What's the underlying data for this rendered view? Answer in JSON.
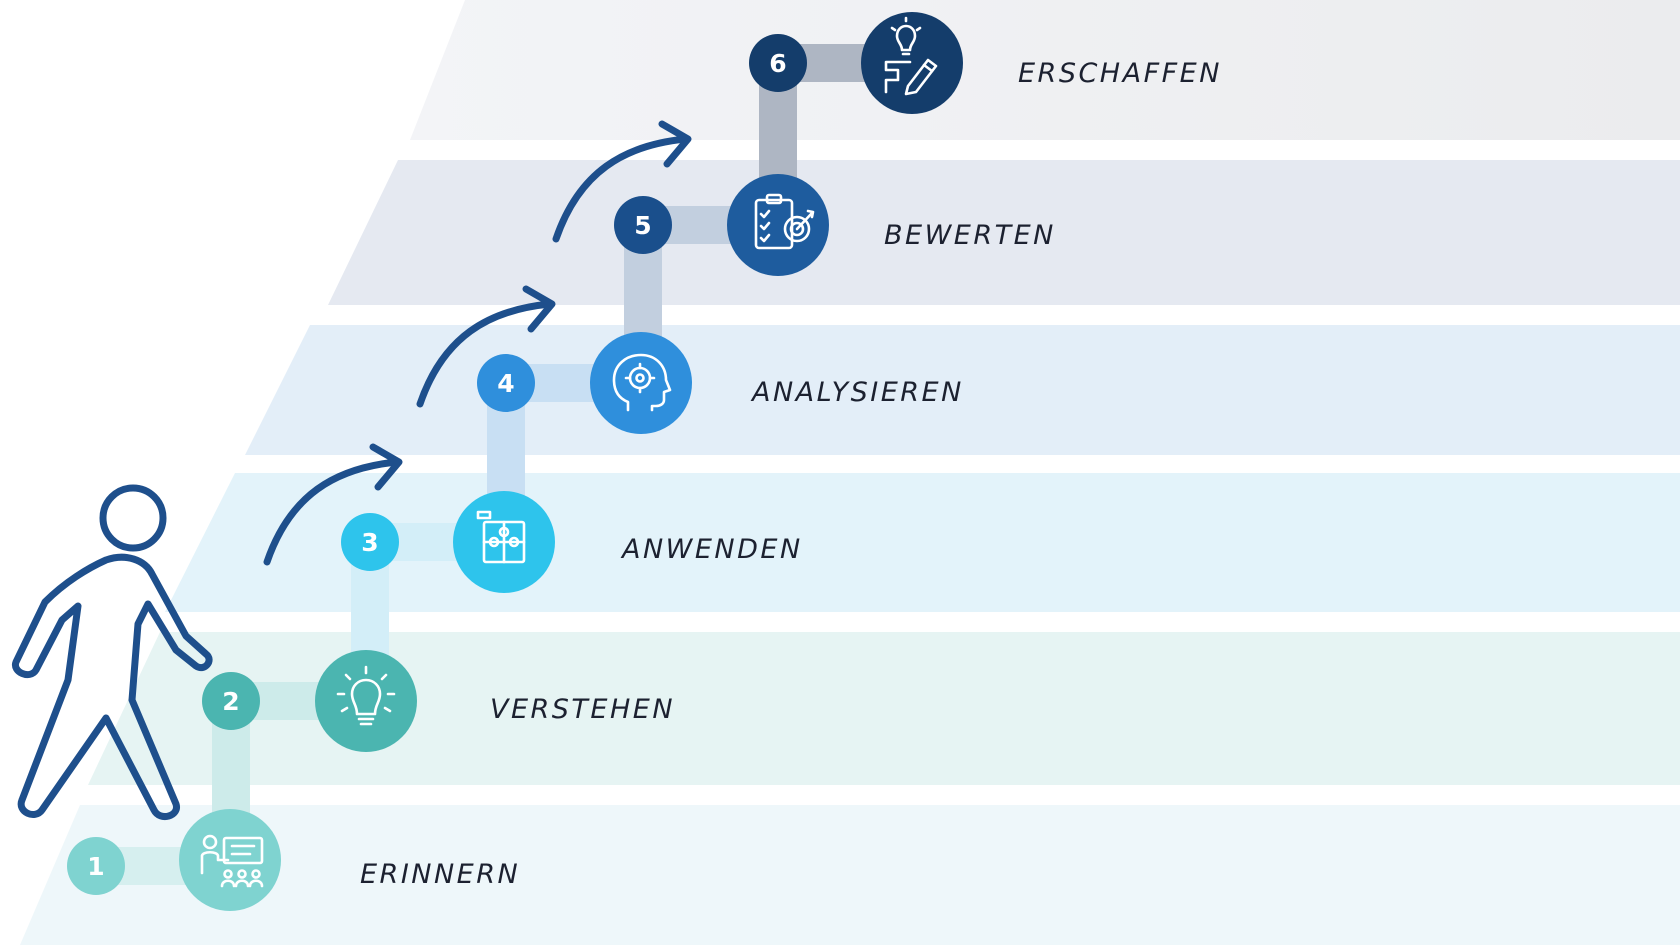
{
  "levels": [
    {
      "number": "1",
      "label": "ERINNERN",
      "icon": "teacher-presentation-icon",
      "circle_color": "#7fd3d0",
      "badge_color": "#7fd3d0"
    },
    {
      "number": "2",
      "label": "VERSTEHEN",
      "icon": "lightbulb-icon",
      "circle_color": "#4bb5b0",
      "badge_color": "#4bb5b0"
    },
    {
      "number": "3",
      "label": "ANWENDEN",
      "icon": "puzzle-icon",
      "circle_color": "#2ec4ec",
      "badge_color": "#2ec4ec"
    },
    {
      "number": "4",
      "label": "ANALYSIEREN",
      "icon": "brain-gear-head-icon",
      "circle_color": "#2f8fdc",
      "badge_color": "#2f8fdc"
    },
    {
      "number": "5",
      "label": "BEWERTEN",
      "icon": "clipboard-target-icon",
      "circle_color": "#1e5c9e",
      "badge_color": "#1a4f8c"
    },
    {
      "number": "6",
      "label": "ERSCHAFFEN",
      "icon": "idea-pencil-icon",
      "circle_color": "#143d6b",
      "badge_color": "#143d6b"
    }
  ],
  "decorations": {
    "figure_icon": "walking-person-icon",
    "arrow_icon": "curved-arrow-icon",
    "arrow_color": "#1e4f8c"
  }
}
